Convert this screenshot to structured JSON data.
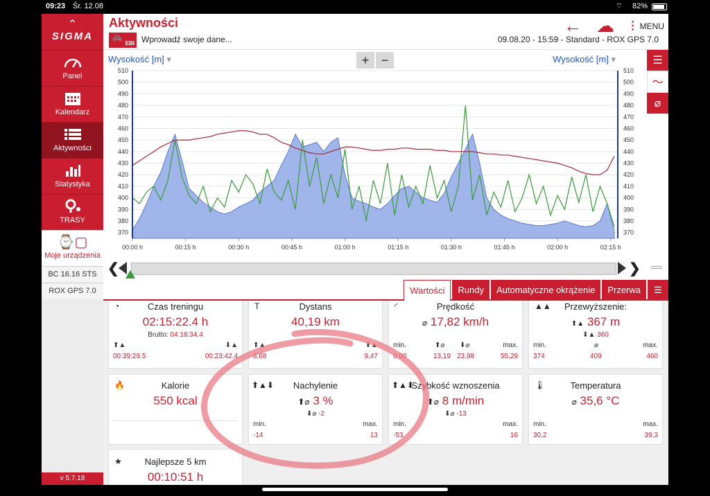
{
  "status": {
    "time": "09:23",
    "date": "Śr. 12.08",
    "battery": "82%"
  },
  "sidebar": {
    "logo": "SIGMA",
    "items": [
      {
        "label": "Panel",
        "icon": "gauge-icon"
      },
      {
        "label": "Kalendarz",
        "icon": "calendar-icon"
      },
      {
        "label": "Aktywności",
        "icon": "list-icon"
      },
      {
        "label": "Statystyka",
        "icon": "bar-chart-icon"
      },
      {
        "label": "TRASY",
        "icon": "route-pin-icon"
      }
    ],
    "devices_label": "Moje urządzenia",
    "devices": [
      "BC 16.16 STS",
      "ROX GPS 7.0"
    ],
    "version": "v 5.7.18"
  },
  "header": {
    "title": "Aktywności",
    "badge": "EBI",
    "subtitle": "Wprowadź swoje dane...",
    "meta": "09.08.20  -  15:59  -  Standard  -  ROX GPS 7.0",
    "menu_label": "MENU"
  },
  "chart_data": {
    "type": "line",
    "left_axis_label": "Wysokość [m]",
    "right_axis_label": "Wysokość [m]",
    "ylim": [
      365,
      510
    ],
    "y_ticks": [
      510,
      500,
      490,
      480,
      470,
      460,
      450,
      440,
      430,
      420,
      410,
      400,
      390,
      380,
      370
    ],
    "x_ticks": [
      "00:00 h",
      "00:15 h",
      "00:30 h",
      "00:45 h",
      "01:00 h",
      "01:15 h",
      "01:30 h",
      "01:45 h",
      "02:00 h",
      "02:15 h"
    ],
    "xlim": [
      0,
      137
    ],
    "series": [
      {
        "color": "#8fa8e6",
        "x": [
          0,
          2,
          4,
          6,
          8,
          10,
          12,
          14,
          16,
          18,
          20,
          22,
          24,
          26,
          28,
          30,
          32,
          34,
          36,
          38,
          40,
          42,
          44,
          46,
          48,
          50,
          52,
          54,
          56,
          58,
          60,
          62,
          64,
          66,
          68,
          70,
          72,
          74,
          76,
          78,
          80,
          82,
          84,
          86,
          88,
          90,
          92,
          94,
          96,
          98,
          100,
          102,
          104,
          106,
          108,
          110,
          112,
          114,
          116,
          118,
          120,
          122,
          124,
          126,
          128,
          130,
          132,
          134,
          136
        ],
        "values": [
          372,
          382,
          395,
          410,
          422,
          440,
          455,
          432,
          408,
          402,
          396,
          392,
          388,
          386,
          388,
          392,
          395,
          398,
          405,
          410,
          415,
          428,
          440,
          455,
          444,
          446,
          448,
          440,
          448,
          452,
          420,
          400,
          397,
          395,
          392,
          390,
          395,
          402,
          408,
          410,
          405,
          400,
          398,
          396,
          404,
          418,
          430,
          442,
          455,
          430,
          400,
          390,
          385,
          382,
          380,
          378,
          377,
          376,
          376,
          377,
          378,
          380,
          378,
          376,
          375,
          376,
          380,
          395,
          372
        ]
      },
      {
        "color": "#3a9a3a",
        "x": [
          0,
          2,
          4,
          6,
          8,
          10,
          12,
          14,
          16,
          18,
          20,
          22,
          24,
          26,
          28,
          30,
          32,
          34,
          36,
          38,
          40,
          42,
          44,
          46,
          48,
          50,
          52,
          54,
          56,
          58,
          60,
          62,
          64,
          66,
          68,
          70,
          72,
          74,
          76,
          78,
          80,
          82,
          84,
          86,
          88,
          90,
          92,
          94,
          96,
          98,
          100,
          102,
          104,
          106,
          108,
          110,
          112,
          114,
          116,
          118,
          120,
          122,
          124,
          126,
          128,
          130,
          132,
          134,
          136
        ],
        "values": [
          400,
          395,
          405,
          410,
          398,
          415,
          450,
          418,
          402,
          395,
          410,
          388,
          400,
          392,
          415,
          405,
          420,
          412,
          395,
          425,
          405,
          398,
          415,
          390,
          450,
          410,
          435,
          395,
          420,
          400,
          442,
          390,
          410,
          380,
          415,
          395,
          430,
          385,
          420,
          392,
          410,
          395,
          428,
          400,
          415,
          388,
          410,
          480,
          398,
          420,
          385,
          405,
          392,
          415,
          388,
          400,
          420,
          395,
          410,
          385,
          402,
          390,
          418,
          396,
          420,
          388,
          410,
          395,
          375
        ]
      },
      {
        "color": "#a3263c",
        "x": [
          0,
          2,
          4,
          6,
          8,
          10,
          12,
          14,
          16,
          18,
          20,
          22,
          24,
          26,
          28,
          30,
          32,
          34,
          36,
          38,
          40,
          42,
          44,
          46,
          48,
          50,
          52,
          54,
          56,
          58,
          60,
          62,
          64,
          66,
          68,
          70,
          72,
          74,
          76,
          78,
          80,
          82,
          84,
          86,
          88,
          90,
          92,
          94,
          96,
          98,
          100,
          102,
          104,
          106,
          108,
          110,
          112,
          114,
          116,
          118,
          120,
          122,
          124,
          126,
          128,
          130,
          132,
          134,
          136
        ],
        "values": [
          428,
          432,
          436,
          440,
          444,
          447,
          450,
          450,
          450,
          451,
          452,
          453,
          455,
          456,
          457,
          458,
          458,
          457,
          455,
          455,
          452,
          448,
          446,
          443,
          441,
          439,
          438,
          438,
          440,
          442,
          444,
          444,
          443,
          442,
          441,
          441,
          442,
          442,
          443,
          443,
          442,
          442,
          442,
          441,
          441,
          440,
          440,
          440,
          440,
          439,
          438,
          438,
          437,
          437,
          436,
          435,
          434,
          433,
          432,
          431,
          430,
          428,
          426,
          423,
          421,
          420,
          420,
          424,
          436
        ]
      }
    ]
  },
  "timeline": {
    "left": "❮",
    "right": "❯"
  },
  "tabs": [
    "Wartości",
    "Rundy",
    "Automatyczne okrążenie",
    "Przerwa"
  ],
  "cards": {
    "czas": {
      "title": "Czas treningu",
      "value": "02:15:22.4 h",
      "sub_label": "Brutto:",
      "sub_value": "04:18:34.4",
      "left": "00:39:29.5",
      "right": "00:23:42.4"
    },
    "dystans": {
      "title": "Dystans",
      "value": "40,19 km",
      "left": "8,68",
      "right": "9,47"
    },
    "predkosc": {
      "title": "Prędkość",
      "value": "17,82 km/h",
      "min_label": "min.",
      "max_label": "max.",
      "min": "0,00",
      "up": "13,19",
      "down": "23,98",
      "max": "55,29"
    },
    "przewyzszenie": {
      "title": "Przewyższenie:",
      "value": "367 m",
      "sub": "360",
      "min_label": "min.",
      "max_label": "max.",
      "min": "374",
      "avg": "409",
      "max": "460"
    },
    "kalorie": {
      "title": "Kalorie",
      "value": "550 kcal"
    },
    "nachylenie": {
      "title": "Nachylenie",
      "value": "3 %",
      "sub": "-2",
      "min_label": "min.",
      "max_label": "max.",
      "min": "-14",
      "max": "13"
    },
    "szybkosc": {
      "title": "Szybkość wznoszenia",
      "value": "8 m/min",
      "sub": "-13",
      "min_label": "min.",
      "max_label": "max.",
      "min": "-53",
      "max": "16"
    },
    "temperatura": {
      "title": "Temperatura",
      "value": "35,6 °C",
      "min_label": "min.",
      "max_label": "max.",
      "min": "30,2",
      "max": "39,3"
    },
    "najlepsze": {
      "title": "Najlepsze 5 km",
      "value": "00:10:51 h"
    }
  }
}
